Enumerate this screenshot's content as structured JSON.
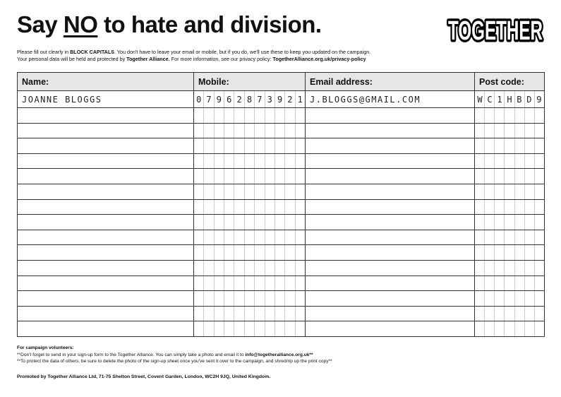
{
  "title": {
    "pre": "Say ",
    "emph": "NO",
    "post": " to hate and division."
  },
  "logo_text": "TOGETHER",
  "intro": {
    "l1a": "Please fill out clearly in ",
    "l1b": "BLOCK CAPITALS",
    "l1c": ". You don't have to leave your email or mobile, but if you do, we'll use these to keep you updated on the campaign.",
    "l2a": "Your personal data will be held and protected by ",
    "l2b": "Together Alliance.",
    "l2c": " For more information, see our privacy policy: ",
    "l2d": "TogetherAlliance.org.uk/privacy-policy"
  },
  "table": {
    "headers": {
      "name": "Name:",
      "mobile": "Mobile:",
      "email": "Email address:",
      "postcode": "Post code:"
    },
    "rows": [
      {
        "name": "JOANNE BLOGGS",
        "mobile": "07962873921",
        "email": "J.BLOGGS@GMAIL.COM",
        "postcode": "WC1HBD9"
      },
      {
        "name": "",
        "mobile": "",
        "email": "",
        "postcode": ""
      },
      {
        "name": "",
        "mobile": "",
        "email": "",
        "postcode": ""
      },
      {
        "name": "",
        "mobile": "",
        "email": "",
        "postcode": ""
      },
      {
        "name": "",
        "mobile": "",
        "email": "",
        "postcode": ""
      },
      {
        "name": "",
        "mobile": "",
        "email": "",
        "postcode": ""
      },
      {
        "name": "",
        "mobile": "",
        "email": "",
        "postcode": ""
      },
      {
        "name": "",
        "mobile": "",
        "email": "",
        "postcode": ""
      },
      {
        "name": "",
        "mobile": "",
        "email": "",
        "postcode": ""
      },
      {
        "name": "",
        "mobile": "",
        "email": "",
        "postcode": ""
      },
      {
        "name": "",
        "mobile": "",
        "email": "",
        "postcode": ""
      },
      {
        "name": "",
        "mobile": "",
        "email": "",
        "postcode": ""
      },
      {
        "name": "",
        "mobile": "",
        "email": "",
        "postcode": ""
      },
      {
        "name": "",
        "mobile": "",
        "email": "",
        "postcode": ""
      },
      {
        "name": "",
        "mobile": "",
        "email": "",
        "postcode": ""
      },
      {
        "name": "",
        "mobile": "",
        "email": "",
        "postcode": ""
      }
    ]
  },
  "footer": {
    "heading": "For campaign volunteers:",
    "l1a": "**Don't forget to send in your sign-up form to the Together Alliance. You can simply take a photo and email it to ",
    "l1b": "info@togetheralliance.org.uk**",
    "l2": "**To protect the data of others, be sure to delete the photo of the sign-up sheet once you've sent it over to the campaign, and shred/rip up the print copy**",
    "promoted": "Promoted by Together Alliance Ltd, 71-75 Shelton Street, Covent Garden, London, WC2H 9JQ, United Kingdom."
  }
}
